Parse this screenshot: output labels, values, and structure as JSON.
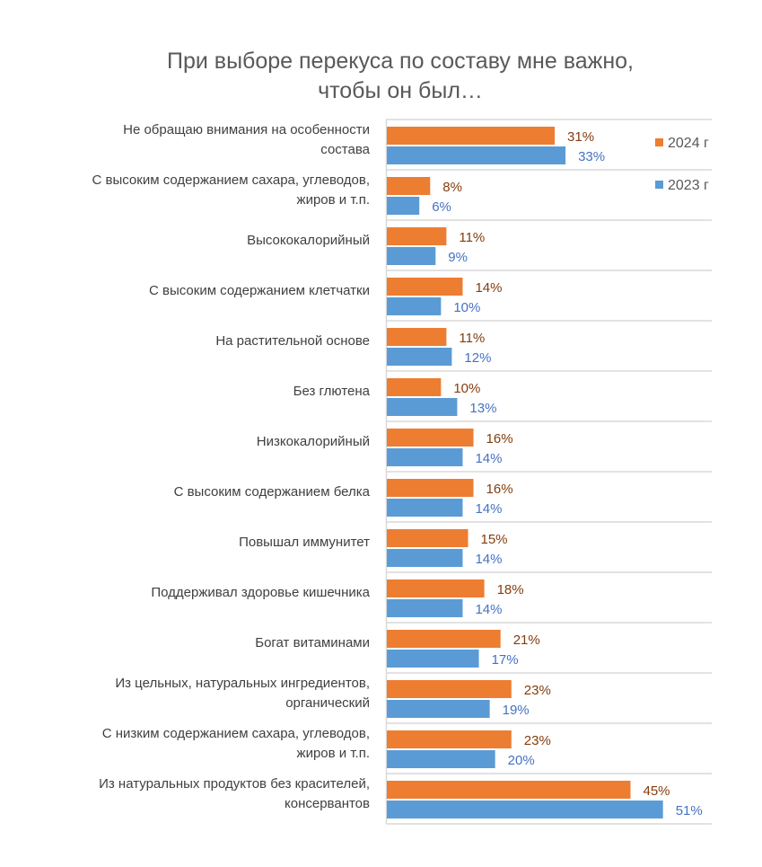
{
  "chart_data": {
    "type": "bar",
    "orientation": "horizontal",
    "title": [
      "При выборе перекуса по составу мне важно,",
      "чтобы он был…"
    ],
    "categories": [
      [
        "Не обращаю внимания на особенности",
        "состава"
      ],
      [
        "С высоким содержанием сахара, углеводов,",
        "жиров и т.п."
      ],
      [
        "Высококалорийный"
      ],
      [
        "С высоким содержанием клетчатки"
      ],
      [
        "На растительной основе"
      ],
      [
        "Без глютена"
      ],
      [
        "Низкокалорийный"
      ],
      [
        "С высоким содержанием белка"
      ],
      [
        "Повышал иммунитет"
      ],
      [
        "Поддерживал здоровье кишечника"
      ],
      [
        "Богат витаминами"
      ],
      [
        "Из цельных, натуральных ингредиентов,",
        "органический"
      ],
      [
        "С низким содержанием сахара, углеводов,",
        "жиров и т.п."
      ],
      [
        "Из натуральных продуктов без красителей,",
        "консервантов"
      ]
    ],
    "series": [
      {
        "name": "2024 г",
        "color": "#ED7D31",
        "label_color": "#843C0C",
        "values": [
          31,
          8,
          11,
          14,
          11,
          10,
          16,
          16,
          15,
          18,
          21,
          23,
          23,
          45
        ],
        "labels": [
          "31%",
          "8%",
          "11%",
          "14%",
          "11%",
          "10%",
          "16%",
          "16%",
          "15%",
          "18%",
          "21%",
          "23%",
          "23%",
          "45%"
        ]
      },
      {
        "name": "2023 г",
        "color": "#5B9BD5",
        "label_color": "#4472C4",
        "values": [
          33,
          6,
          9,
          10,
          12,
          13,
          14,
          14,
          14,
          14,
          17,
          19,
          20,
          51
        ],
        "labels": [
          "33%",
          "6%",
          "9%",
          "10%",
          "12%",
          "13%",
          "14%",
          "14%",
          "14%",
          "14%",
          "17%",
          "19%",
          "20%",
          "51%"
        ]
      }
    ],
    "unit": "%",
    "xlim": [
      0,
      60
    ],
    "grid": "horizontal category separators",
    "legend": "top-right",
    "data_labels": true
  }
}
